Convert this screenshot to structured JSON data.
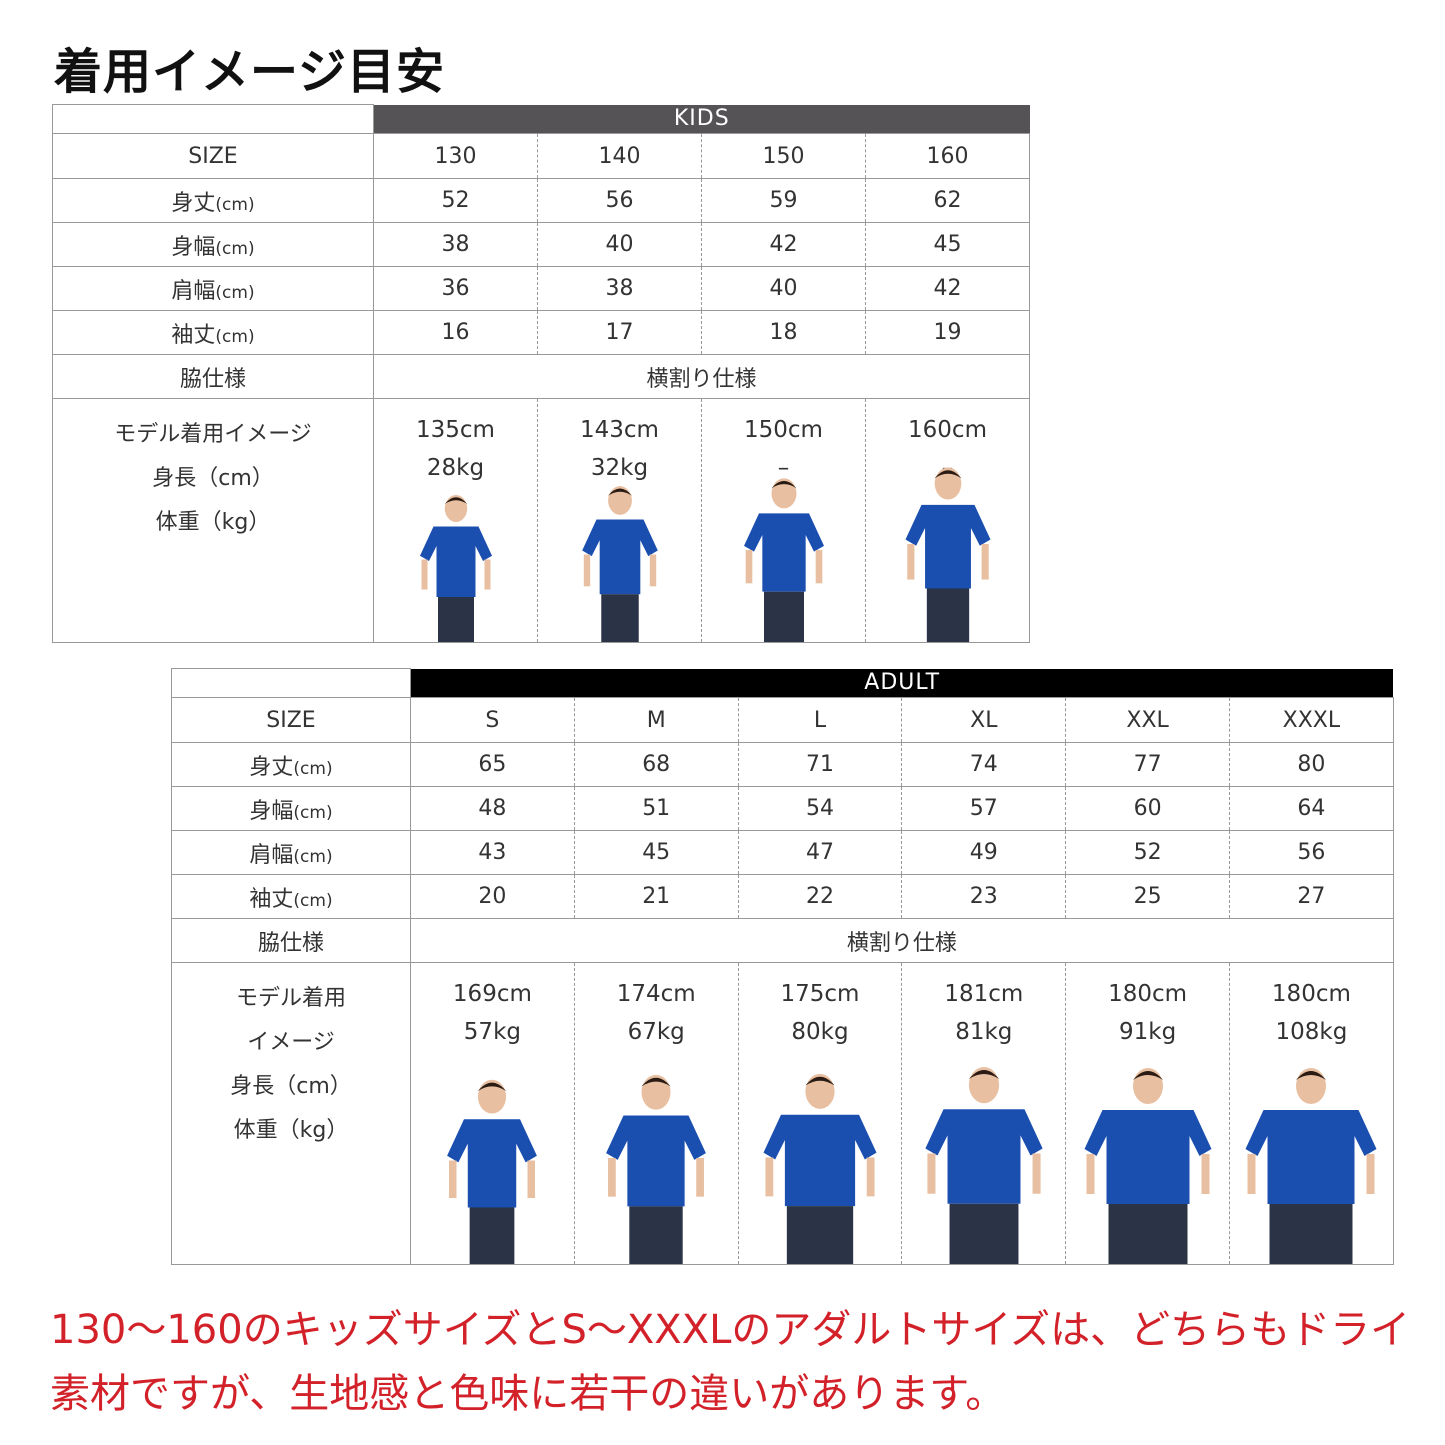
{
  "title": "着用イメージ目安",
  "kids": {
    "header": "KIDS",
    "header_color": "#555355",
    "size_label": "SIZE",
    "sizes": [
      "130",
      "140",
      "150",
      "160"
    ],
    "rows": [
      {
        "label": "身丈",
        "unit": "(cm)",
        "values": [
          "52",
          "56",
          "59",
          "62"
        ]
      },
      {
        "label": "身幅",
        "unit": "(cm)",
        "values": [
          "38",
          "40",
          "42",
          "45"
        ]
      },
      {
        "label": "肩幅",
        "unit": "(cm)",
        "values": [
          "36",
          "38",
          "40",
          "42"
        ]
      },
      {
        "label": "袖丈",
        "unit": "(cm)",
        "values": [
          "16",
          "17",
          "18",
          "19"
        ]
      }
    ],
    "side_label": "脇仕様",
    "side_value": "横割り仕様",
    "model_label": [
      "モデル着用イメージ",
      "身長（cm）",
      "体重（kg）"
    ],
    "models": [
      {
        "height": "135cm",
        "weight": "28kg"
      },
      {
        "height": "143cm",
        "weight": "32kg"
      },
      {
        "height": "150cm",
        "weight": "–"
      },
      {
        "height": "160cm",
        "weight": "–"
      }
    ]
  },
  "adult": {
    "header": "ADULT",
    "header_color": "#000000",
    "size_label": "SIZE",
    "sizes": [
      "S",
      "M",
      "L",
      "XL",
      "XXL",
      "XXXL"
    ],
    "rows": [
      {
        "label": "身丈",
        "unit": "(cm)",
        "values": [
          "65",
          "68",
          "71",
          "74",
          "77",
          "80"
        ]
      },
      {
        "label": "身幅",
        "unit": "(cm)",
        "values": [
          "48",
          "51",
          "54",
          "57",
          "60",
          "64"
        ]
      },
      {
        "label": "肩幅",
        "unit": "(cm)",
        "values": [
          "43",
          "45",
          "47",
          "49",
          "52",
          "56"
        ]
      },
      {
        "label": "袖丈",
        "unit": "(cm)",
        "values": [
          "20",
          "21",
          "22",
          "23",
          "25",
          "27"
        ]
      }
    ],
    "side_label": "脇仕様",
    "side_value": "横割り仕様",
    "model_label": [
      "モデル着用",
      "イメージ",
      "身長（cm）",
      "体重（kg）"
    ],
    "models": [
      {
        "height": "169cm",
        "weight": "57kg"
      },
      {
        "height": "174cm",
        "weight": "67kg"
      },
      {
        "height": "175cm",
        "weight": "80kg"
      },
      {
        "height": "181cm",
        "weight": "81kg"
      },
      {
        "height": "180cm",
        "weight": "91kg"
      },
      {
        "height": "180cm",
        "weight": "108kg"
      }
    ]
  },
  "shirt_color": "#1a4fb0",
  "note": "130〜160のキッズサイズとS〜XXXLのアダルトサイズは、どちらもドライ素材ですが、生地感と色味に若干の違いがあります。"
}
